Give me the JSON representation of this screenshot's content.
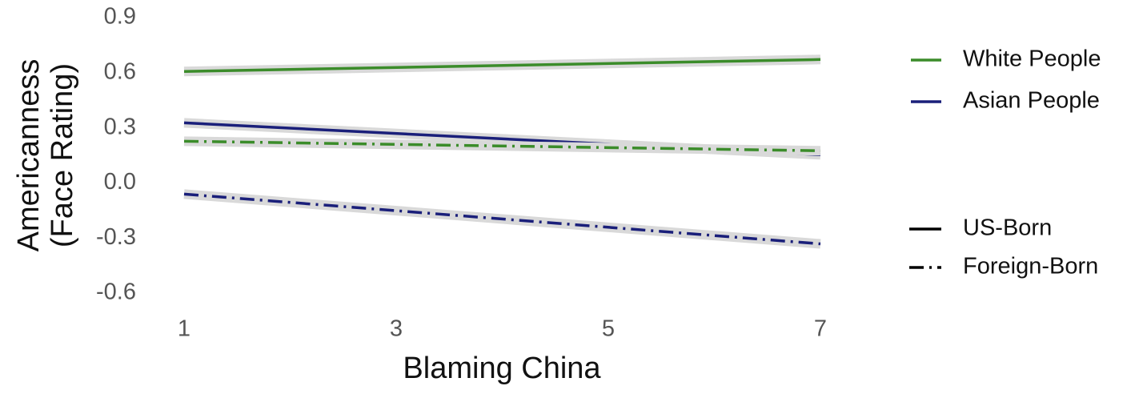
{
  "chart_data": {
    "type": "line",
    "xlabel": "Blaming China",
    "ylabel": [
      "Americanness",
      "(Face Rating)"
    ],
    "x": [
      1,
      7
    ],
    "xlim": [
      1,
      7
    ],
    "xticks": [
      1,
      3,
      5,
      7
    ],
    "ylim": [
      -0.6,
      0.9
    ],
    "yticks": [
      0.9,
      0.6,
      0.3,
      {
        "value": 0,
        "label": "0.0"
      },
      -0.3,
      -0.6
    ],
    "grid": false,
    "series": [
      {
        "color": "#3b8c2a",
        "dash": "solid",
        "values": [
          0.607,
          0.672
        ]
      },
      {
        "color": "#1a1f7a",
        "dash": "solid",
        "values": [
          0.327,
          0.153
        ]
      },
      {
        "color": "#3b8c2a",
        "dash": "dashdot",
        "values": [
          0.227,
          0.175
        ]
      },
      {
        "color": "#1a1f7a",
        "dash": "dashdot",
        "values": [
          -0.061,
          -0.332
        ]
      }
    ],
    "color_legend": [
      {
        "label": "White People",
        "color": "#3b8c2a"
      },
      {
        "label": "Asian People",
        "color": "#1a1f7a"
      }
    ],
    "linetype_legend": [
      {
        "label": "US-Born",
        "dash": "solid"
      },
      {
        "label": "Foreign-Born",
        "dash": "dashdot"
      }
    ]
  }
}
